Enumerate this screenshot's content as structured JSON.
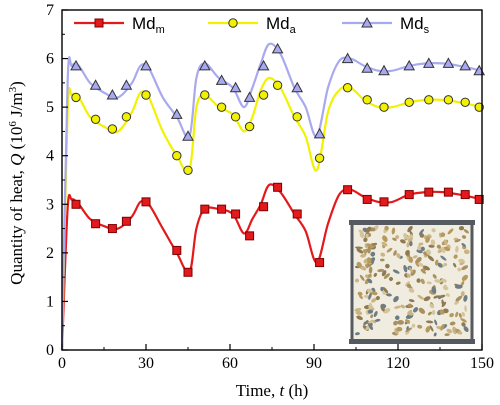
{
  "chart_data": {
    "type": "line",
    "xlabel": "Time, t (h)",
    "ylabel": "Quantity of heat, Q (10^6 J/m^3)",
    "xlabel_parts": {
      "main": "Time, ",
      "var": "t",
      "unit": " (h)"
    },
    "ylabel_parts": {
      "main": "Quantity of heat, ",
      "var": "Q",
      "unit_open": " (10",
      "exp": "6",
      "unit_mid": " J/m",
      "exp2": "3",
      "unit_close": ")"
    },
    "xlim": [
      0,
      150
    ],
    "ylim": [
      0,
      7
    ],
    "xticks": [
      0,
      30,
      60,
      90,
      120,
      150
    ],
    "yticks": [
      0,
      1,
      2,
      3,
      4,
      5,
      6,
      7
    ],
    "grid": false,
    "legend_position": "top",
    "series": [
      {
        "name": "Md_m",
        "label_main": "Md",
        "label_sub": "m",
        "color": "#e3191c",
        "marker": "square",
        "x": [
          0,
          2,
          3.5,
          6,
          10,
          15,
          20,
          25,
          28,
          31,
          36,
          41,
          45.5,
          48,
          51,
          56,
          61,
          65,
          68,
          71,
          74,
          78,
          83,
          87,
          91,
          95,
          99,
          103,
          108,
          113,
          118,
          124,
          130,
          136,
          142,
          150
        ],
        "y": [
          0,
          2.9,
          3.1,
          3.0,
          2.7,
          2.55,
          2.5,
          2.75,
          3.05,
          3.0,
          2.5,
          2.0,
          1.6,
          2.5,
          2.9,
          2.9,
          2.8,
          2.4,
          2.7,
          3.0,
          3.4,
          3.25,
          2.8,
          2.45,
          1.8,
          2.6,
          3.2,
          3.3,
          3.15,
          3.05,
          3.05,
          3.2,
          3.25,
          3.25,
          3.2,
          3.1
        ],
        "marker_x": [
          5,
          12,
          18,
          23,
          30,
          41,
          45,
          51,
          57,
          62,
          67,
          72,
          77,
          84,
          92,
          102,
          109,
          115,
          124,
          131,
          138,
          144,
          149
        ],
        "marker_y": [
          3.0,
          2.6,
          2.5,
          2.65,
          3.05,
          2.05,
          1.6,
          2.9,
          2.9,
          2.8,
          2.35,
          2.95,
          3.35,
          2.8,
          1.8,
          3.3,
          3.1,
          3.05,
          3.2,
          3.25,
          3.25,
          3.2,
          3.1
        ]
      },
      {
        "name": "Md_a",
        "label_main": "Md",
        "label_sub": "a",
        "color": "#f2f200",
        "marker": "circle",
        "x": [
          0,
          2,
          3.5,
          6,
          10,
          15,
          20,
          25,
          28,
          31,
          36,
          41,
          45.5,
          48,
          51,
          56,
          61,
          65,
          68,
          71,
          74,
          78,
          83,
          87,
          91,
          95,
          99,
          103,
          108,
          113,
          118,
          124,
          130,
          136,
          142,
          150
        ],
        "y": [
          0,
          4.9,
          5.25,
          5.2,
          4.8,
          4.6,
          4.5,
          4.9,
          5.3,
          5.2,
          4.5,
          4.0,
          3.7,
          5.0,
          5.25,
          5.0,
          4.85,
          4.5,
          4.8,
          5.35,
          5.6,
          5.4,
          4.8,
          4.4,
          3.7,
          4.9,
          5.35,
          5.4,
          5.15,
          5.0,
          5.0,
          5.1,
          5.15,
          5.15,
          5.1,
          5.0
        ],
        "marker_x": [
          5,
          12,
          18,
          23,
          30,
          41,
          45,
          51,
          57,
          62,
          67,
          72,
          77,
          84,
          92,
          102,
          109,
          115,
          124,
          131,
          138,
          144,
          149
        ],
        "marker_y": [
          5.2,
          4.75,
          4.55,
          4.8,
          5.25,
          4.0,
          3.7,
          5.25,
          5.0,
          4.8,
          4.6,
          5.25,
          5.45,
          4.8,
          3.95,
          5.4,
          5.15,
          5.0,
          5.1,
          5.15,
          5.15,
          5.1,
          5.0
        ]
      },
      {
        "name": "Md_s",
        "label_main": "Md",
        "label_sub": "s",
        "color": "#a9a9f0",
        "marker": "triangle",
        "x": [
          0,
          2,
          3.5,
          6,
          10,
          15,
          20,
          25,
          28,
          31,
          36,
          41,
          45.5,
          48,
          51,
          56,
          61,
          65,
          68,
          71,
          74,
          78,
          83,
          87,
          91,
          95,
          99,
          103,
          108,
          113,
          118,
          124,
          130,
          136,
          142,
          150
        ],
        "y": [
          0,
          5.5,
          5.85,
          5.85,
          5.5,
          5.3,
          5.2,
          5.5,
          5.85,
          5.8,
          5.2,
          4.8,
          4.4,
          5.6,
          5.9,
          5.6,
          5.4,
          5.0,
          5.4,
          5.9,
          6.3,
          6.1,
          5.4,
          5.0,
          4.4,
          5.4,
          5.95,
          6.0,
          5.85,
          5.75,
          5.75,
          5.85,
          5.9,
          5.9,
          5.85,
          5.75
        ],
        "marker_x": [
          5,
          12,
          18,
          23,
          30,
          41,
          45,
          51,
          57,
          62,
          67,
          72,
          77,
          84,
          92,
          102,
          109,
          115,
          124,
          131,
          138,
          144,
          149
        ],
        "marker_y": [
          5.85,
          5.45,
          5.25,
          5.45,
          5.85,
          4.85,
          4.4,
          5.85,
          5.55,
          5.4,
          5.2,
          5.85,
          6.2,
          5.4,
          4.45,
          6.0,
          5.8,
          5.75,
          5.85,
          5.9,
          5.9,
          5.85,
          5.75
        ]
      }
    ]
  },
  "photo": {
    "icon": "grain-sample-photo",
    "frame_color": "#555a60",
    "background_color": "#f1ece0",
    "grain_colors": [
      "#b59a5e",
      "#8f7a52",
      "#c9b484",
      "#6e7c84",
      "#a89060",
      "#d4c49a"
    ]
  }
}
